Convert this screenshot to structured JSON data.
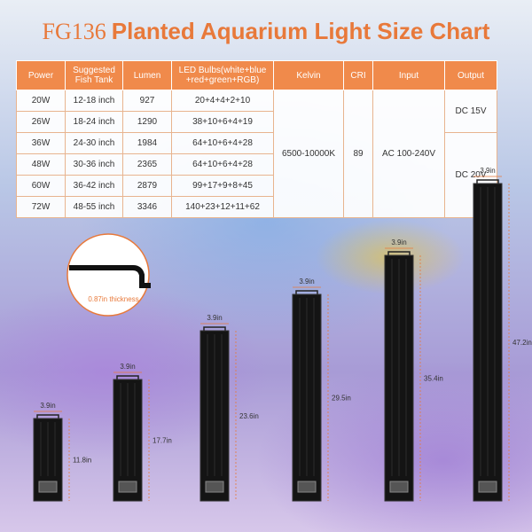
{
  "header": {
    "model": "FG136",
    "title": "Planted Aquarium Light Size Chart"
  },
  "table": {
    "columns": [
      "Power",
      "Suggested Fish Tank",
      "Lumen",
      "LED Bulbs(white+blue +red+green+RGB)",
      "Kelvin",
      "CRI",
      "Input",
      "Output"
    ],
    "rows": [
      [
        "20W",
        "12-18 inch",
        "927",
        "20+4+4+2+10"
      ],
      [
        "26W",
        "18-24 inch",
        "1290",
        "38+10+6+4+19"
      ],
      [
        "36W",
        "24-30 inch",
        "1984",
        "64+10+6+4+28"
      ],
      [
        "48W",
        "30-36 inch",
        "2365",
        "64+10+6+4+28"
      ],
      [
        "60W",
        "36-42 inch",
        "2879",
        "99+17+9+8+45"
      ],
      [
        "72W",
        "48-55 inch",
        "3346",
        "140+23+12+11+62"
      ]
    ],
    "kelvin": "6500-10000K",
    "cri": "89",
    "input": "AC 100-240V",
    "output": [
      "DC 15V",
      "DC 20V"
    ]
  },
  "inset": {
    "label": "0.87in thickness"
  },
  "lights": [
    {
      "width": "3.9in",
      "length": "11.8in"
    },
    {
      "width": "3.9in",
      "length": "17.7in"
    },
    {
      "width": "3.9in",
      "length": "23.6in"
    },
    {
      "width": "3.9in",
      "length": "29.5in"
    },
    {
      "width": "3.9in",
      "length": "35.4in"
    },
    {
      "width": "3.9in",
      "length": "47.2in"
    }
  ]
}
